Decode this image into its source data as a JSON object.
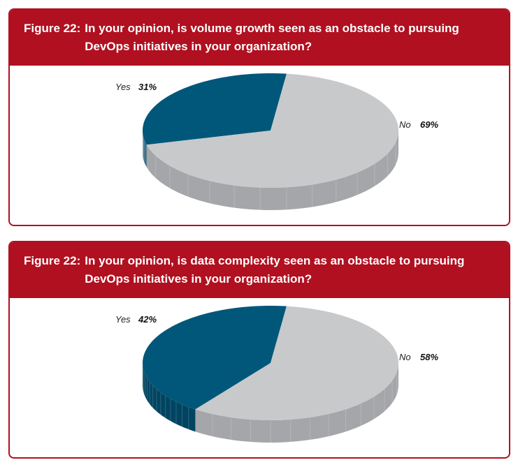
{
  "chart_data": [
    {
      "type": "pie",
      "figure_label": "Figure 22:",
      "title": "In your opinion, is volume growth seen as an obstacle to pursuing DevOps initiatives in your organization?",
      "slices": [
        {
          "name": "Yes",
          "value": 31,
          "value_label": "31%",
          "color": "#00577a",
          "side_color": "#004461"
        },
        {
          "name": "No",
          "value": 69,
          "value_label": "69%",
          "color": "#c8c9cb",
          "side_color": "#a4a6a9"
        }
      ]
    },
    {
      "type": "pie",
      "figure_label": "Figure 22:",
      "title": "In your opinion, is data complexity seen as an obstacle to pursuing DevOps initiatives in your organization?",
      "slices": [
        {
          "name": "Yes",
          "value": 42,
          "value_label": "42%",
          "color": "#00577a",
          "side_color": "#004461"
        },
        {
          "name": "No",
          "value": 58,
          "value_label": "58%",
          "color": "#c8c9cb",
          "side_color": "#a4a6a9"
        }
      ]
    }
  ],
  "colors": {
    "header_background": "#b01020",
    "header_text": "#ffffff",
    "border": "#b01020"
  }
}
